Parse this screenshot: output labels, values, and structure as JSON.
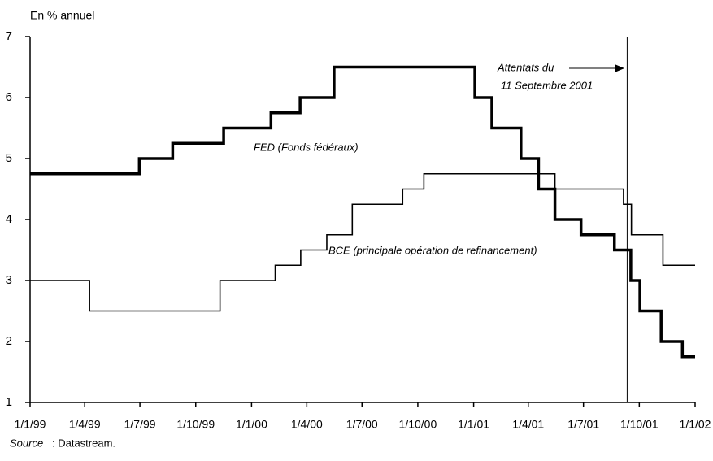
{
  "chart_data": {
    "type": "line",
    "y_label": "En % annuel",
    "xlim": [
      "1999-01-01",
      "2002-01-01"
    ],
    "xticks": [
      {
        "value": "1999-01-01",
        "label": "1/1/99"
      },
      {
        "value": "1999-04-01",
        "label": "1/4/99"
      },
      {
        "value": "1999-07-01",
        "label": "1/7/99"
      },
      {
        "value": "1999-10-01",
        "label": "1/10/99"
      },
      {
        "value": "2000-01-01",
        "label": "1/1/00"
      },
      {
        "value": "2000-04-01",
        "label": "1/4/00"
      },
      {
        "value": "2000-07-01",
        "label": "1/7/00"
      },
      {
        "value": "2000-10-01",
        "label": "1/10/00"
      },
      {
        "value": "2001-01-01",
        "label": "1/1/01"
      },
      {
        "value": "2001-04-01",
        "label": "1/4/01"
      },
      {
        "value": "2001-07-01",
        "label": "1/7/01"
      },
      {
        "value": "2001-10-01",
        "label": "1/10/01"
      },
      {
        "value": "2002-01-01",
        "label": "1/1/02"
      }
    ],
    "ylim": [
      1,
      7
    ],
    "yticks": [
      1,
      2,
      3,
      4,
      5,
      6,
      7
    ],
    "step": "post",
    "series": [
      {
        "name": "FED (Fonds fédéraux)",
        "color": "#000000",
        "width": 3.5,
        "x": [
          "1999-01-01",
          "1999-06-30",
          "1999-08-24",
          "1999-11-16",
          "2000-02-02",
          "2000-03-21",
          "2000-05-16",
          "2001-01-03",
          "2001-01-31",
          "2001-03-20",
          "2001-04-18",
          "2001-05-15",
          "2001-06-27",
          "2001-08-21",
          "2001-09-17",
          "2001-10-02",
          "2001-11-06",
          "2001-12-11",
          "2002-01-01"
        ],
        "values": [
          4.75,
          5.0,
          5.25,
          5.5,
          5.75,
          6.0,
          6.5,
          6.0,
          5.5,
          5.0,
          4.5,
          4.0,
          3.75,
          3.5,
          3.0,
          2.5,
          2.0,
          1.75,
          1.75
        ]
      },
      {
        "name": "BCE (principale opération de refinancement)",
        "color": "#000000",
        "width": 1.6,
        "x": [
          "1999-01-01",
          "1999-04-09",
          "1999-11-10",
          "2000-02-09",
          "2000-03-22",
          "2000-05-04",
          "2000-06-15",
          "2000-09-06",
          "2000-10-11",
          "2001-05-15",
          "2001-09-05",
          "2001-09-18",
          "2001-11-09",
          "2002-01-01"
        ],
        "values": [
          3.0,
          2.5,
          3.0,
          3.25,
          3.5,
          3.75,
          4.25,
          4.5,
          4.75,
          4.5,
          4.25,
          3.75,
          3.25,
          3.25
        ]
      }
    ],
    "event": {
      "x": "2001-09-11",
      "label": [
        "Attentats du",
        "11 Septembre 2001"
      ]
    },
    "source_label": "Source",
    "source": ": Datastream."
  }
}
